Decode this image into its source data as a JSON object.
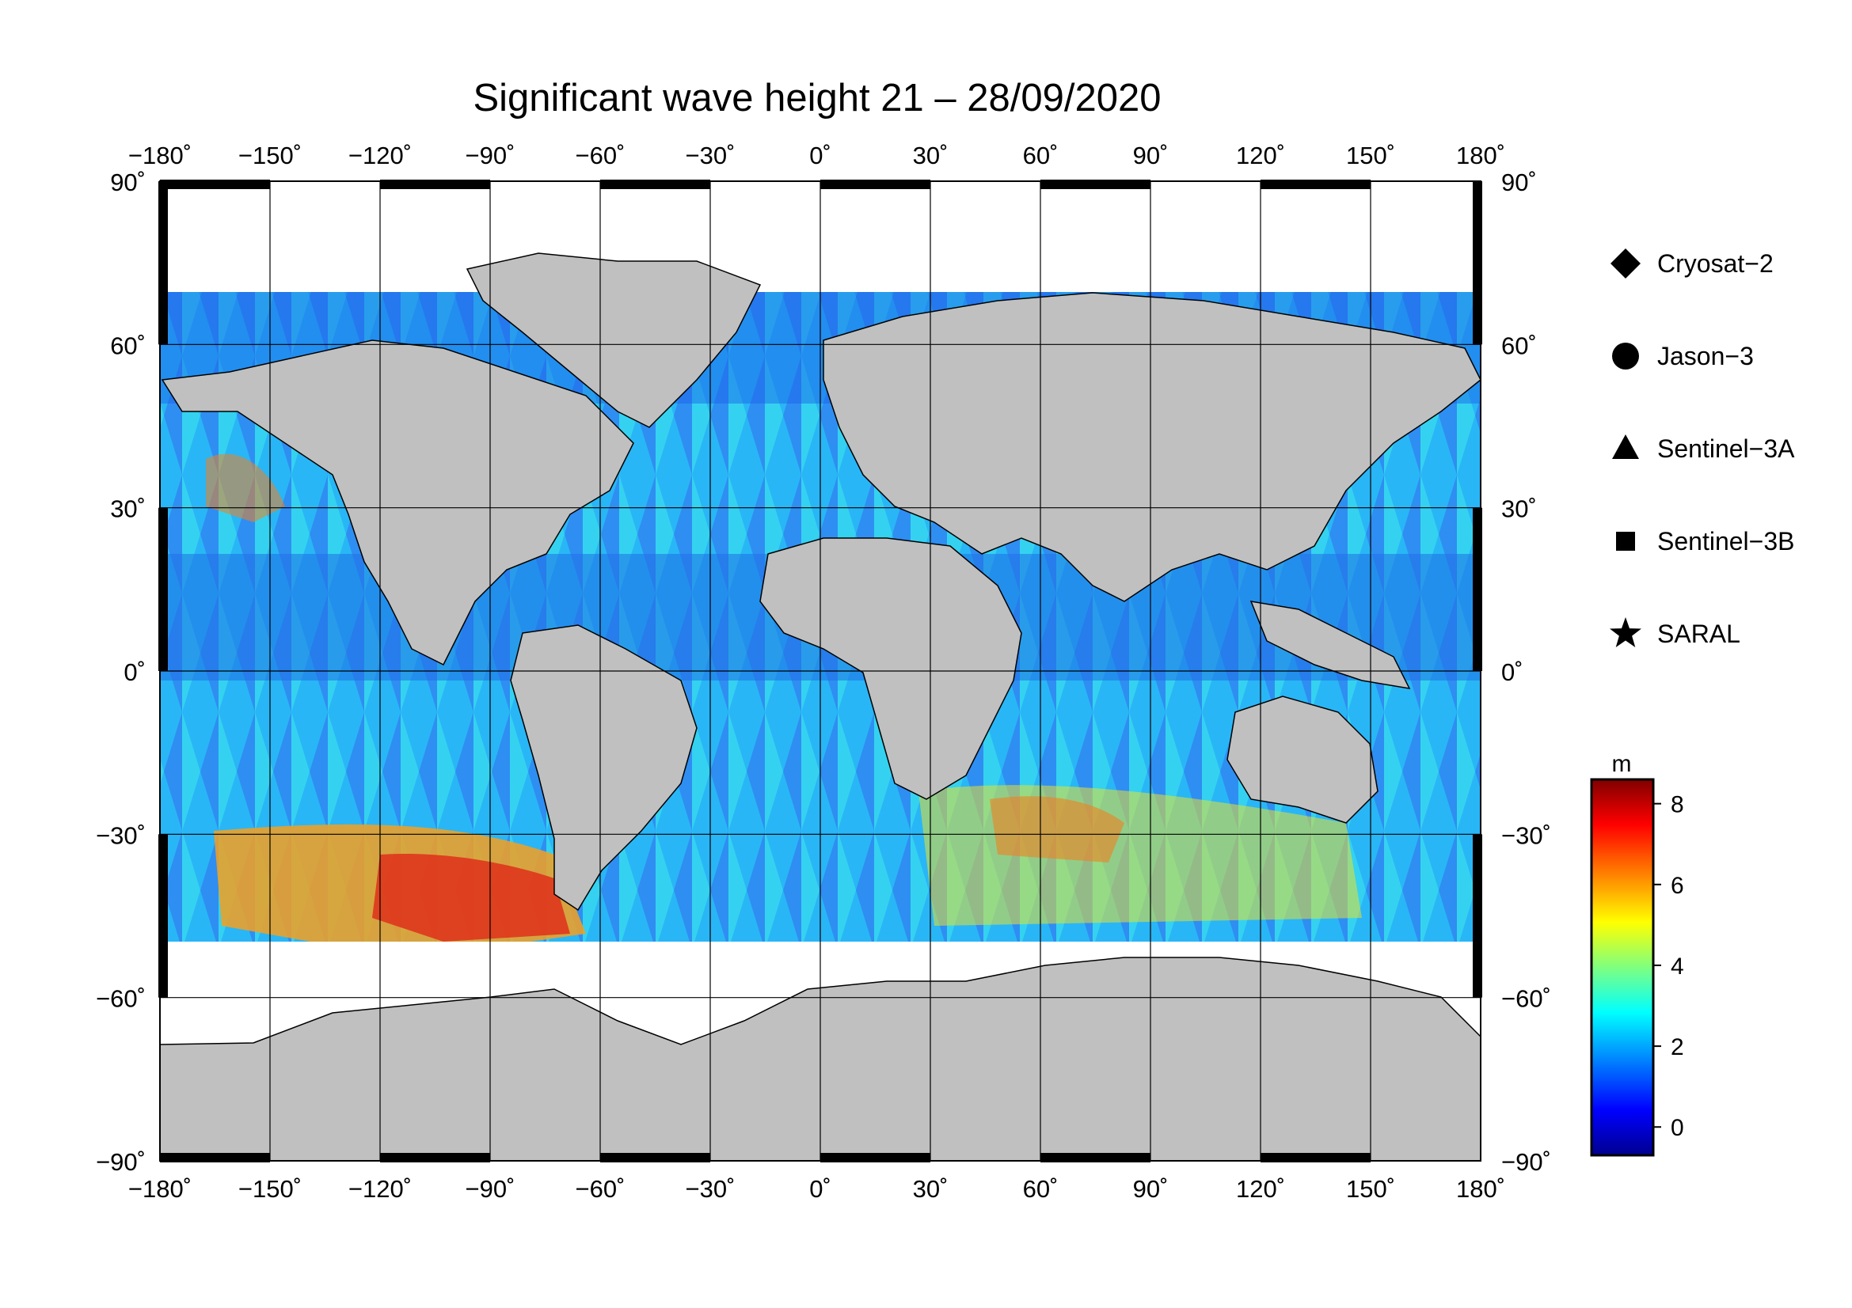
{
  "title": "Significant wave height 21 – 28/09/2020",
  "map": {
    "lon_range": [
      -180,
      180
    ],
    "lat_range": [
      -90,
      90
    ],
    "grid_step": 30,
    "lon_ticks": [
      "−180˚",
      "−150˚",
      "−120˚",
      "−90˚",
      "−60˚",
      "−30˚",
      "0˚",
      "30˚",
      "60˚",
      "90˚",
      "120˚",
      "150˚",
      "180˚"
    ],
    "lat_ticks": [
      "90˚",
      "60˚",
      "30˚",
      "0˚",
      "−30˚",
      "−60˚",
      "−90˚"
    ],
    "land_color": "#c0c0c0",
    "ice_color": "#ffffff",
    "low_wave_color": "#1040e0"
  },
  "legend": [
    {
      "label": "Cryosat−2",
      "icon": "diamond-icon"
    },
    {
      "label": "Jason−3",
      "icon": "circle-icon"
    },
    {
      "label": "Sentinel−3A",
      "icon": "triangle-icon"
    },
    {
      "label": "Sentinel−3B",
      "icon": "square-icon"
    },
    {
      "label": "SARAL",
      "icon": "star-icon"
    }
  ],
  "colorbar": {
    "unit": "m",
    "range": [
      -0.7,
      8.6
    ],
    "ticks": [
      0,
      2,
      4,
      6,
      8
    ],
    "tick_labels": [
      "0",
      "2",
      "4",
      "6",
      "8"
    ],
    "colormap": [
      "#00008f",
      "#0000ff",
      "#00ffff",
      "#ffff00",
      "#ff0000",
      "#800000"
    ]
  }
}
